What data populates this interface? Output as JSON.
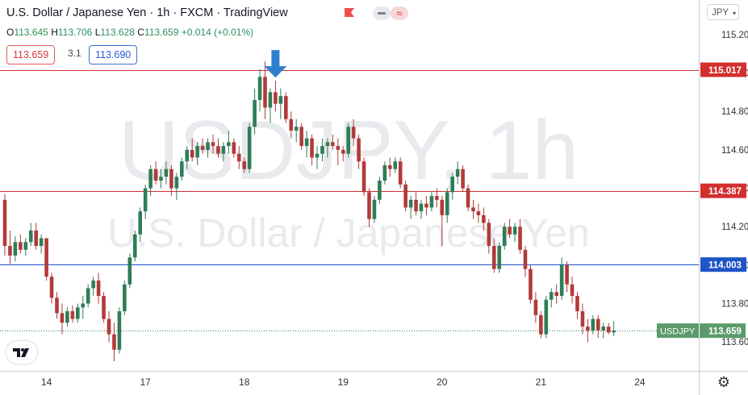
{
  "header": {
    "title": "U.S. Dollar / Japanese Yen · 1h · FXCM · TradingView",
    "ohlc": {
      "open_label": "O",
      "open": "113.645",
      "high_label": "H",
      "high": "113.706",
      "low_label": "L",
      "low": "113.628",
      "close_label": "C",
      "close": "113.659",
      "change": "+0.014 (+0.01%)"
    },
    "sell_price": "113.659",
    "spread": "3.1",
    "buy_price": "113.690",
    "currency_selector": "JPY"
  },
  "watermark": {
    "symbol": "USDJPY, 1h",
    "name": "U.S. Dollar / Japanese Yen"
  },
  "colors": {
    "up": "#2e7d57",
    "down": "#b23a3a",
    "resistance": "#d32f2f",
    "support": "#1e55c7",
    "arrow": "#2f7fcf",
    "last_price_bg": "#5b9b6b"
  },
  "icons": [
    "tradingview-logo-icon",
    "settings-gear-icon",
    "alert-flag-icon",
    "down-arrow-icon"
  ],
  "chart_data": {
    "type": "candlestick",
    "title": "U.S. Dollar / Japanese Yen · 1h · FXCM",
    "x_ticks": [
      "14",
      "17",
      "18",
      "19",
      "20",
      "21",
      "24"
    ],
    "y_ticks": [
      "115.200",
      "115.000",
      "114.800",
      "114.600",
      "114.400",
      "114.200",
      "114.000",
      "113.800",
      "113.600"
    ],
    "ylim": [
      113.45,
      115.38
    ],
    "grid": false,
    "horizontal_lines": [
      {
        "value": 115.017,
        "label": "115.017",
        "color": "#d32f2f"
      },
      {
        "value": 114.387,
        "label": "114.387",
        "color": "#d32f2f"
      },
      {
        "value": 114.003,
        "label": "114.003",
        "color": "#1e55c7"
      }
    ],
    "last_price": {
      "symbol": "USDJPY",
      "value": 113.659,
      "label": "113.659"
    },
    "annotation": {
      "type": "down-arrow",
      "at_candle": 52
    },
    "candles": [
      [
        114.34,
        114.37,
        114.05,
        114.1
      ],
      [
        114.1,
        114.18,
        114.0,
        114.05
      ],
      [
        114.05,
        114.15,
        114.02,
        114.12
      ],
      [
        114.12,
        114.16,
        114.06,
        114.08
      ],
      [
        114.08,
        114.14,
        114.05,
        114.12
      ],
      [
        114.12,
        114.22,
        114.1,
        114.18
      ],
      [
        114.18,
        114.22,
        114.08,
        114.1
      ],
      [
        114.1,
        114.16,
        114.06,
        114.14
      ],
      [
        114.14,
        114.14,
        113.92,
        113.94
      ],
      [
        113.94,
        113.96,
        113.8,
        113.83
      ],
      [
        113.83,
        113.86,
        113.72,
        113.75
      ],
      [
        113.75,
        113.8,
        113.64,
        113.7
      ],
      [
        113.7,
        113.78,
        113.68,
        113.76
      ],
      [
        113.76,
        113.79,
        113.7,
        113.72
      ],
      [
        113.72,
        113.8,
        113.7,
        113.78
      ],
      [
        113.78,
        113.84,
        113.72,
        113.8
      ],
      [
        113.8,
        113.9,
        113.78,
        113.88
      ],
      [
        113.88,
        113.94,
        113.84,
        113.92
      ],
      [
        113.92,
        113.96,
        113.8,
        113.84
      ],
      [
        113.84,
        113.86,
        113.7,
        113.72
      ],
      [
        113.72,
        113.76,
        113.6,
        113.64
      ],
      [
        113.64,
        113.7,
        113.5,
        113.56
      ],
      [
        113.56,
        113.78,
        113.54,
        113.76
      ],
      [
        113.76,
        113.92,
        113.74,
        113.9
      ],
      [
        113.9,
        114.06,
        113.88,
        114.04
      ],
      [
        114.04,
        114.18,
        114.02,
        114.16
      ],
      [
        114.16,
        114.3,
        114.12,
        114.28
      ],
      [
        114.28,
        114.42,
        114.24,
        114.4
      ],
      [
        114.4,
        114.52,
        114.36,
        114.5
      ],
      [
        114.5,
        114.54,
        114.42,
        114.44
      ],
      [
        114.44,
        114.5,
        114.4,
        114.46
      ],
      [
        114.46,
        114.54,
        114.42,
        114.5
      ],
      [
        114.5,
        114.52,
        114.36,
        114.4
      ],
      [
        114.4,
        114.48,
        114.34,
        114.46
      ],
      [
        114.46,
        114.56,
        114.44,
        114.54
      ],
      [
        114.54,
        114.62,
        114.5,
        114.6
      ],
      [
        114.6,
        114.66,
        114.54,
        114.56
      ],
      [
        114.56,
        114.64,
        114.52,
        114.62
      ],
      [
        114.62,
        114.66,
        114.58,
        114.6
      ],
      [
        114.6,
        114.66,
        114.56,
        114.64
      ],
      [
        114.64,
        114.68,
        114.58,
        114.62
      ],
      [
        114.62,
        114.66,
        114.56,
        114.58
      ],
      [
        114.58,
        114.64,
        114.54,
        114.62
      ],
      [
        114.62,
        114.7,
        114.58,
        114.64
      ],
      [
        114.64,
        114.66,
        114.56,
        114.58
      ],
      [
        114.58,
        114.62,
        114.5,
        114.54
      ],
      [
        114.54,
        114.56,
        114.48,
        114.5
      ],
      [
        114.5,
        114.74,
        114.48,
        114.72
      ],
      [
        114.72,
        114.92,
        114.68,
        114.86
      ],
      [
        114.86,
        115.02,
        114.8,
        114.98
      ],
      [
        114.98,
        115.06,
        114.76,
        114.82
      ],
      [
        114.82,
        114.92,
        114.74,
        114.9
      ],
      [
        114.9,
        114.96,
        114.8,
        114.84
      ],
      [
        114.84,
        114.92,
        114.76,
        114.88
      ],
      [
        114.88,
        114.9,
        114.74,
        114.76
      ],
      [
        114.76,
        114.8,
        114.66,
        114.7
      ],
      [
        114.7,
        114.76,
        114.64,
        114.72
      ],
      [
        114.72,
        114.74,
        114.6,
        114.62
      ],
      [
        114.62,
        114.7,
        114.56,
        114.66
      ],
      [
        114.66,
        114.68,
        114.52,
        114.56
      ],
      [
        114.56,
        114.62,
        114.5,
        114.58
      ],
      [
        114.58,
        114.66,
        114.54,
        114.62
      ],
      [
        114.62,
        114.66,
        114.56,
        114.64
      ],
      [
        114.64,
        114.68,
        114.6,
        114.62
      ],
      [
        114.62,
        114.66,
        114.52,
        114.6
      ],
      [
        114.6,
        114.62,
        114.54,
        114.58
      ],
      [
        114.58,
        114.74,
        114.56,
        114.72
      ],
      [
        114.72,
        114.76,
        114.62,
        114.66
      ],
      [
        114.66,
        114.68,
        114.5,
        114.54
      ],
      [
        114.54,
        114.56,
        114.36,
        114.38
      ],
      [
        114.38,
        114.4,
        114.2,
        114.24
      ],
      [
        114.24,
        114.36,
        114.22,
        114.34
      ],
      [
        114.34,
        114.46,
        114.32,
        114.44
      ],
      [
        114.44,
        114.54,
        114.42,
        114.52
      ],
      [
        114.52,
        114.56,
        114.46,
        114.5
      ],
      [
        114.5,
        114.56,
        114.48,
        114.54
      ],
      [
        114.54,
        114.56,
        114.4,
        114.42
      ],
      [
        114.42,
        114.44,
        114.28,
        114.3
      ],
      [
        114.3,
        114.36,
        114.24,
        114.34
      ],
      [
        114.34,
        114.38,
        114.26,
        114.28
      ],
      [
        114.28,
        114.34,
        114.24,
        114.32
      ],
      [
        114.32,
        114.36,
        114.26,
        114.3
      ],
      [
        114.3,
        114.38,
        114.28,
        114.36
      ],
      [
        114.36,
        114.4,
        114.3,
        114.34
      ],
      [
        114.34,
        114.36,
        114.1,
        114.26
      ],
      [
        114.26,
        114.4,
        114.22,
        114.38
      ],
      [
        114.38,
        114.48,
        114.34,
        114.46
      ],
      [
        114.46,
        114.54,
        114.42,
        114.5
      ],
      [
        114.5,
        114.52,
        114.38,
        114.4
      ],
      [
        114.4,
        114.42,
        114.28,
        114.3
      ],
      [
        114.3,
        114.34,
        114.24,
        114.28
      ],
      [
        114.28,
        114.32,
        114.22,
        114.26
      ],
      [
        114.26,
        114.3,
        114.18,
        114.22
      ],
      [
        114.22,
        114.24,
        114.06,
        114.1
      ],
      [
        114.1,
        114.14,
        113.96,
        113.98
      ],
      [
        113.98,
        114.12,
        113.96,
        114.1
      ],
      [
        114.1,
        114.22,
        114.08,
        114.2
      ],
      [
        114.2,
        114.24,
        114.14,
        114.16
      ],
      [
        114.16,
        114.22,
        114.12,
        114.2
      ],
      [
        114.2,
        114.24,
        114.06,
        114.08
      ],
      [
        114.08,
        114.1,
        113.94,
        113.98
      ],
      [
        113.98,
        114.0,
        113.8,
        113.82
      ],
      [
        113.82,
        113.86,
        113.7,
        113.74
      ],
      [
        113.74,
        113.76,
        113.62,
        113.64
      ],
      [
        113.64,
        113.84,
        113.62,
        113.82
      ],
      [
        113.82,
        113.88,
        113.78,
        113.86
      ],
      [
        113.86,
        113.9,
        113.8,
        113.84
      ],
      [
        113.84,
        114.04,
        113.82,
        114.0
      ],
      [
        114.0,
        114.02,
        113.86,
        113.9
      ],
      [
        113.9,
        113.94,
        113.8,
        113.84
      ],
      [
        113.84,
        113.86,
        113.72,
        113.76
      ],
      [
        113.76,
        113.8,
        113.64,
        113.68
      ],
      [
        113.68,
        113.72,
        113.6,
        113.66
      ],
      [
        113.66,
        113.74,
        113.64,
        113.72
      ],
      [
        113.72,
        113.74,
        113.62,
        113.66
      ],
      [
        113.66,
        113.7,
        113.62,
        113.68
      ],
      [
        113.68,
        113.7,
        113.64,
        113.65
      ],
      [
        113.65,
        113.71,
        113.63,
        113.66
      ]
    ]
  }
}
